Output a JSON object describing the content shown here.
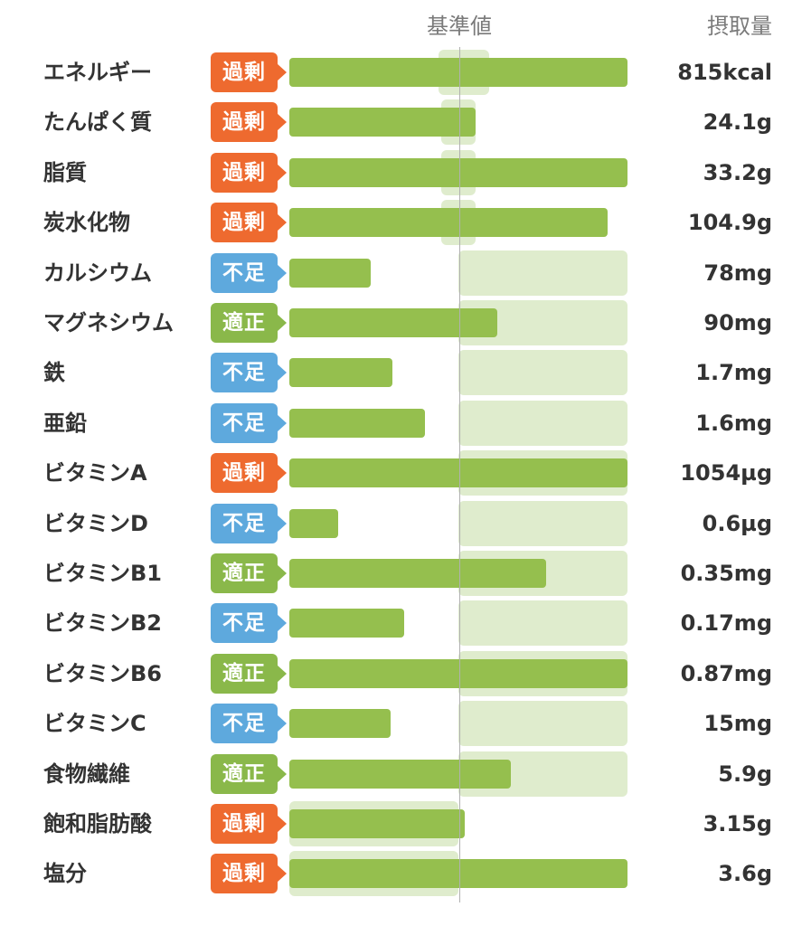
{
  "header": {
    "reference_label": "基準値",
    "intake_label": "摂取量"
  },
  "status_colors": {
    "過剰": "#ee6a2f",
    "不足": "#5ea9dd",
    "適正": "#8ab84a"
  },
  "bar_color": "#95bf4e",
  "reference_band_color": "#dfeccd",
  "chart_data": {
    "type": "bar",
    "orientation": "horizontal",
    "reference_line_value": 100,
    "axis_max_percent": 220,
    "categories": [
      "エネルギー",
      "たんぱく質",
      "脂質",
      "炭水化物",
      "カルシウム",
      "マグネシウム",
      "鉄",
      "亜鉛",
      "ビタミンA",
      "ビタミンD",
      "ビタミンB1",
      "ビタミンB2",
      "ビタミンB6",
      "ビタミンC",
      "食物繊維",
      "飽和脂肪酸",
      "塩分"
    ],
    "rows": [
      {
        "name": "エネルギー",
        "status": "過剰",
        "intake": "815kcal",
        "percent": 200,
        "ref_low": 88,
        "ref_high": 118
      },
      {
        "name": "たんぱく質",
        "status": "過剰",
        "intake": "24.1g",
        "percent": 110,
        "ref_low": 90,
        "ref_high": 110
      },
      {
        "name": "脂質",
        "status": "過剰",
        "intake": "33.2g",
        "percent": 200,
        "ref_low": 90,
        "ref_high": 110
      },
      {
        "name": "炭水化物",
        "status": "過剰",
        "intake": "104.9g",
        "percent": 188,
        "ref_low": 90,
        "ref_high": 110
      },
      {
        "name": "カルシウム",
        "status": "不足",
        "intake": "78mg",
        "percent": 48,
        "ref_low": 100,
        "ref_high": 200
      },
      {
        "name": "マグネシウム",
        "status": "適正",
        "intake": "90mg",
        "percent": 123,
        "ref_low": 100,
        "ref_high": 200
      },
      {
        "name": "鉄",
        "status": "不足",
        "intake": "1.7mg",
        "percent": 61,
        "ref_low": 100,
        "ref_high": 200
      },
      {
        "name": "亜鉛",
        "status": "不足",
        "intake": "1.6mg",
        "percent": 80,
        "ref_low": 100,
        "ref_high": 200
      },
      {
        "name": "ビタミンA",
        "status": "過剰",
        "intake": "1054µg",
        "percent": 200,
        "ref_low": 100,
        "ref_high": 200
      },
      {
        "name": "ビタミンD",
        "status": "不足",
        "intake": "0.6µg",
        "percent": 29,
        "ref_low": 100,
        "ref_high": 200
      },
      {
        "name": "ビタミンB1",
        "status": "適正",
        "intake": "0.35mg",
        "percent": 152,
        "ref_low": 100,
        "ref_high": 200
      },
      {
        "name": "ビタミンB2",
        "status": "不足",
        "intake": "0.17mg",
        "percent": 68,
        "ref_low": 100,
        "ref_high": 200
      },
      {
        "name": "ビタミンB6",
        "status": "適正",
        "intake": "0.87mg",
        "percent": 200,
        "ref_low": 100,
        "ref_high": 200
      },
      {
        "name": "ビタミンC",
        "status": "不足",
        "intake": "15mg",
        "percent": 60,
        "ref_low": 100,
        "ref_high": 200
      },
      {
        "name": "食物繊維",
        "status": "適正",
        "intake": "5.9g",
        "percent": 131,
        "ref_low": 100,
        "ref_high": 200
      },
      {
        "name": "飽和脂肪酸",
        "status": "過剰",
        "intake": "3.15g",
        "percent": 104,
        "ref_low": 0,
        "ref_high": 100
      },
      {
        "name": "塩分",
        "status": "過剰",
        "intake": "3.6g",
        "percent": 200,
        "ref_low": 0,
        "ref_high": 100
      }
    ]
  }
}
